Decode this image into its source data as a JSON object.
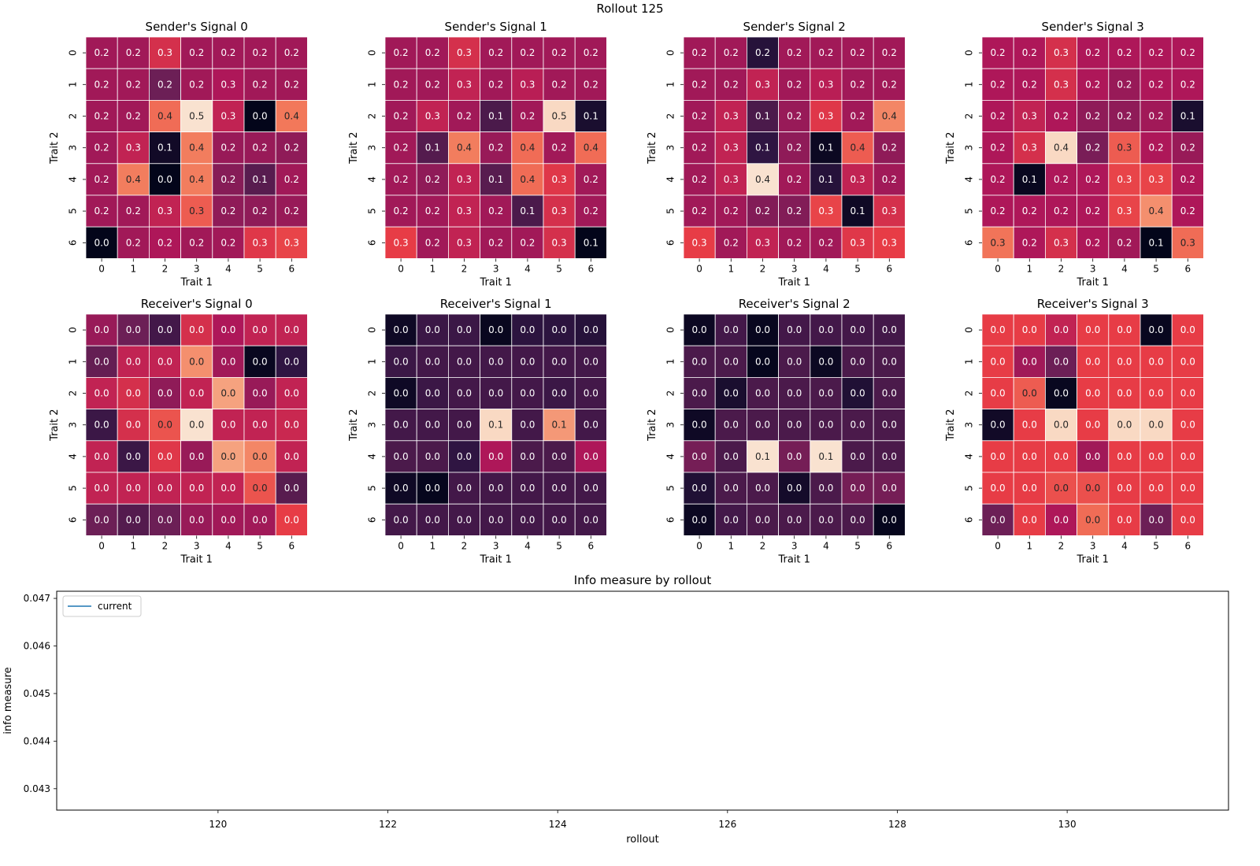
{
  "figure_title": "Rollout 125",
  "chart_data": [
    {
      "type": "heatmap",
      "title": "Sender's Signal 0",
      "xlabel": "Trait 1",
      "ylabel": "Trait 2",
      "x_ticks": [
        "0",
        "1",
        "2",
        "3",
        "4",
        "5",
        "6"
      ],
      "y_ticks": [
        "0",
        "1",
        "2",
        "3",
        "4",
        "5",
        "6"
      ],
      "labels": [
        [
          "0.2",
          "0.2",
          "0.3",
          "0.2",
          "0.2",
          "0.2",
          "0.2"
        ],
        [
          "0.2",
          "0.2",
          "0.2",
          "0.2",
          "0.3",
          "0.2",
          "0.2"
        ],
        [
          "0.2",
          "0.2",
          "0.4",
          "0.5",
          "0.3",
          "0.0",
          "0.4"
        ],
        [
          "0.2",
          "0.3",
          "0.1",
          "0.4",
          "0.2",
          "0.2",
          "0.2"
        ],
        [
          "0.2",
          "0.4",
          "0.0",
          "0.4",
          "0.2",
          "0.1",
          "0.2"
        ],
        [
          "0.2",
          "0.2",
          "0.3",
          "0.3",
          "0.2",
          "0.2",
          "0.2"
        ],
        [
          "0.0",
          "0.2",
          "0.2",
          "0.2",
          "0.2",
          "0.3",
          "0.3"
        ]
      ],
      "intensity": [
        [
          0.42,
          0.42,
          0.55,
          0.42,
          0.42,
          0.42,
          0.42
        ],
        [
          0.42,
          0.42,
          0.3,
          0.42,
          0.45,
          0.42,
          0.42
        ],
        [
          0.42,
          0.42,
          0.72,
          0.98,
          0.5,
          0,
          0.75
        ],
        [
          0.42,
          0.5,
          0.05,
          0.76,
          0.4,
          0.4,
          0.38
        ],
        [
          0.42,
          0.76,
          0,
          0.76,
          0.36,
          0.25,
          0.42
        ],
        [
          0.42,
          0.42,
          0.5,
          0.68,
          0.38,
          0.38,
          0.4
        ],
        [
          0,
          0.42,
          0.45,
          0.42,
          0.42,
          0.58,
          0.62
        ]
      ]
    },
    {
      "type": "heatmap",
      "title": "Sender's Signal 1",
      "xlabel": "Trait 1",
      "ylabel": "Trait 2",
      "x_ticks": [
        "0",
        "1",
        "2",
        "3",
        "4",
        "5",
        "6"
      ],
      "y_ticks": [
        "0",
        "1",
        "2",
        "3",
        "4",
        "5",
        "6"
      ],
      "labels": [
        [
          "0.2",
          "0.2",
          "0.3",
          "0.2",
          "0.2",
          "0.2",
          "0.2"
        ],
        [
          "0.2",
          "0.2",
          "0.3",
          "0.2",
          "0.3",
          "0.2",
          "0.2"
        ],
        [
          "0.2",
          "0.3",
          "0.2",
          "0.1",
          "0.2",
          "0.5",
          "0.1"
        ],
        [
          "0.2",
          "0.1",
          "0.4",
          "0.2",
          "0.4",
          "0.2",
          "0.4"
        ],
        [
          "0.2",
          "0.2",
          "0.3",
          "0.1",
          "0.4",
          "0.3",
          "0.2"
        ],
        [
          "0.2",
          "0.2",
          "0.3",
          "0.2",
          "0.1",
          "0.3",
          "0.2"
        ],
        [
          "0.3",
          "0.2",
          "0.3",
          "0.2",
          "0.2",
          "0.3",
          "0.1"
        ]
      ],
      "intensity": [
        [
          0.42,
          0.42,
          0.55,
          0.42,
          0.42,
          0.42,
          0.42
        ],
        [
          0.42,
          0.42,
          0.5,
          0.42,
          0.48,
          0.42,
          0.42
        ],
        [
          0.42,
          0.5,
          0.42,
          0.22,
          0.42,
          0.96,
          0.08
        ],
        [
          0.42,
          0.24,
          0.76,
          0.4,
          0.72,
          0.42,
          0.72
        ],
        [
          0.42,
          0.38,
          0.5,
          0.25,
          0.72,
          0.58,
          0.42
        ],
        [
          0.42,
          0.42,
          0.5,
          0.42,
          0.22,
          0.55,
          0.42
        ],
        [
          0.6,
          0.42,
          0.5,
          0.42,
          0.42,
          0.55,
          0
        ]
      ]
    },
    {
      "type": "heatmap",
      "title": "Sender's Signal 2",
      "xlabel": "Trait 1",
      "ylabel": "Trait 2",
      "x_ticks": [
        "0",
        "1",
        "2",
        "3",
        "4",
        "5",
        "6"
      ],
      "y_ticks": [
        "0",
        "1",
        "2",
        "3",
        "4",
        "5",
        "6"
      ],
      "labels": [
        [
          "0.2",
          "0.2",
          "0.2",
          "0.2",
          "0.2",
          "0.2",
          "0.2"
        ],
        [
          "0.2",
          "0.2",
          "0.3",
          "0.2",
          "0.3",
          "0.2",
          "0.2"
        ],
        [
          "0.2",
          "0.3",
          "0.1",
          "0.2",
          "0.3",
          "0.2",
          "0.4"
        ],
        [
          "0.2",
          "0.3",
          "0.1",
          "0.2",
          "0.1",
          "0.4",
          "0.2"
        ],
        [
          "0.2",
          "0.3",
          "0.4",
          "0.2",
          "0.1",
          "0.3",
          "0.2"
        ],
        [
          "0.2",
          "0.2",
          "0.2",
          "0.2",
          "0.3",
          "0.1",
          "0.3"
        ],
        [
          "0.3",
          "0.2",
          "0.3",
          "0.2",
          "0.2",
          "0.3",
          "0.3"
        ]
      ],
      "intensity": [
        [
          0.42,
          0.42,
          0.12,
          0.42,
          0.42,
          0.42,
          0.42
        ],
        [
          0.42,
          0.42,
          0.5,
          0.42,
          0.48,
          0.42,
          0.42
        ],
        [
          0.42,
          0.5,
          0.22,
          0.4,
          0.58,
          0.42,
          0.78
        ],
        [
          0.42,
          0.5,
          0.15,
          0.38,
          0.03,
          0.68,
          0.38
        ],
        [
          0.42,
          0.5,
          0.98,
          0.42,
          0.12,
          0.5,
          0.42
        ],
        [
          0.42,
          0.42,
          0.35,
          0.35,
          0.62,
          0.04,
          0.55
        ],
        [
          0.6,
          0.42,
          0.5,
          0.42,
          0.42,
          0.58,
          0.6
        ]
      ]
    },
    {
      "type": "heatmap",
      "title": "Sender's Signal 3",
      "xlabel": "Trait 1",
      "ylabel": "Trait 2",
      "x_ticks": [
        "0",
        "1",
        "2",
        "3",
        "4",
        "5",
        "6"
      ],
      "y_ticks": [
        "0",
        "1",
        "2",
        "3",
        "4",
        "5",
        "6"
      ],
      "labels": [
        [
          "0.2",
          "0.2",
          "0.3",
          "0.2",
          "0.2",
          "0.2",
          "0.2"
        ],
        [
          "0.2",
          "0.2",
          "0.3",
          "0.2",
          "0.2",
          "0.2",
          "0.2"
        ],
        [
          "0.2",
          "0.3",
          "0.2",
          "0.2",
          "0.2",
          "0.2",
          "0.1"
        ],
        [
          "0.2",
          "0.3",
          "0.4",
          "0.2",
          "0.3",
          "0.2",
          "0.2"
        ],
        [
          "0.2",
          "0.1",
          "0.2",
          "0.2",
          "0.3",
          "0.3",
          "0.2"
        ],
        [
          "0.2",
          "0.2",
          "0.2",
          "0.2",
          "0.3",
          "0.4",
          "0.2"
        ],
        [
          "0.3",
          "0.2",
          "0.3",
          "0.2",
          "0.2",
          "0.1",
          "0.3"
        ]
      ],
      "intensity": [
        [
          0.45,
          0.45,
          0.55,
          0.45,
          0.45,
          0.45,
          0.45
        ],
        [
          0.45,
          0.45,
          0.55,
          0.45,
          0.4,
          0.45,
          0.45
        ],
        [
          0.45,
          0.5,
          0.45,
          0.38,
          0.38,
          0.42,
          0.08
        ],
        [
          0.45,
          0.55,
          0.96,
          0.33,
          0.68,
          0.45,
          0.4
        ],
        [
          0.45,
          0.02,
          0.45,
          0.45,
          0.62,
          0.62,
          0.45
        ],
        [
          0.45,
          0.45,
          0.45,
          0.45,
          0.62,
          0.8,
          0.45
        ],
        [
          0.74,
          0.45,
          0.55,
          0.45,
          0.42,
          0,
          0.72
        ]
      ]
    },
    {
      "type": "heatmap",
      "title": "Receiver's Signal 0",
      "xlabel": "Trait 1",
      "ylabel": "Trait 2",
      "x_ticks": [
        "0",
        "1",
        "2",
        "3",
        "4",
        "5",
        "6"
      ],
      "y_ticks": [
        "0",
        "1",
        "2",
        "3",
        "4",
        "5",
        "6"
      ],
      "labels": [
        [
          "0.0",
          "0.0",
          "0.0",
          "0.0",
          "0.0",
          "0.0",
          "0.0"
        ],
        [
          "0.0",
          "0.0",
          "0.0",
          "0.0",
          "0.0",
          "0.0",
          "0.0"
        ],
        [
          "0.0",
          "0.0",
          "0.0",
          "0.0",
          "0.0",
          "0.0",
          "0.0"
        ],
        [
          "0.0",
          "0.0",
          "0.0",
          "0.0",
          "0.0",
          "0.0",
          "0.0"
        ],
        [
          "0.0",
          "0.0",
          "0.0",
          "0.0",
          "0.0",
          "0.0",
          "0.0"
        ],
        [
          "0.0",
          "0.0",
          "0.0",
          "0.0",
          "0.0",
          "0.0",
          "0.0"
        ],
        [
          "0.0",
          "0.0",
          "0.0",
          "0.0",
          "0.0",
          "0.0",
          "0.0"
        ]
      ],
      "intensity": [
        [
          0.4,
          0.3,
          0.2,
          0.55,
          0.45,
          0.5,
          0.5
        ],
        [
          0.28,
          0.5,
          0.5,
          0.8,
          0.42,
          0.02,
          0.15
        ],
        [
          0.5,
          0.55,
          0.38,
          0.5,
          0.84,
          0.4,
          0.5
        ],
        [
          0.18,
          0.55,
          0.66,
          0.98,
          0.5,
          0.5,
          0.52
        ],
        [
          0.5,
          0.18,
          0.58,
          0.4,
          0.84,
          0.78,
          0.5
        ],
        [
          0.5,
          0.5,
          0.5,
          0.5,
          0.5,
          0.66,
          0.25
        ],
        [
          0.3,
          0.24,
          0.3,
          0.4,
          0.42,
          0.42,
          0.6
        ]
      ]
    },
    {
      "type": "heatmap",
      "title": "Receiver's Signal 1",
      "xlabel": "Trait 1",
      "ylabel": "Trait 2",
      "x_ticks": [
        "0",
        "1",
        "2",
        "3",
        "4",
        "5",
        "6"
      ],
      "y_ticks": [
        "0",
        "1",
        "2",
        "3",
        "4",
        "5",
        "6"
      ],
      "labels": [
        [
          "0.0",
          "0.0",
          "0.0",
          "0.0",
          "0.0",
          "0.0",
          "0.0"
        ],
        [
          "0.0",
          "0.0",
          "0.0",
          "0.0",
          "0.0",
          "0.0",
          "0.0"
        ],
        [
          "0.0",
          "0.0",
          "0.0",
          "0.0",
          "0.0",
          "0.0",
          "0.0"
        ],
        [
          "0.0",
          "0.0",
          "0.0",
          "0.1",
          "0.0",
          "0.1",
          "0.0"
        ],
        [
          "0.0",
          "0.0",
          "0.0",
          "0.0",
          "0.0",
          "0.0",
          "0.0"
        ],
        [
          "0.0",
          "0.0",
          "0.0",
          "0.0",
          "0.0",
          "0.0",
          "0.0"
        ],
        [
          "0.0",
          "0.0",
          "0.0",
          "0.0",
          "0.0",
          "0.0",
          "0.0"
        ]
      ],
      "intensity": [
        [
          0.04,
          0.18,
          0.18,
          0.02,
          0.14,
          0.14,
          0.12
        ],
        [
          0.18,
          0.2,
          0.2,
          0.2,
          0.2,
          0.2,
          0.2
        ],
        [
          0.04,
          0.18,
          0.2,
          0.2,
          0.2,
          0.18,
          0.2
        ],
        [
          0.2,
          0.2,
          0.2,
          0.96,
          0.2,
          0.82,
          0.2
        ],
        [
          0.22,
          0.22,
          0.15,
          0.45,
          0.22,
          0.22,
          0.45
        ],
        [
          0.04,
          0.01,
          0.2,
          0.2,
          0.2,
          0.2,
          0.2
        ],
        [
          0.2,
          0.2,
          0.2,
          0.2,
          0.2,
          0.2,
          0.2
        ]
      ]
    },
    {
      "type": "heatmap",
      "title": "Receiver's Signal 2",
      "xlabel": "Trait 1",
      "ylabel": "Trait 2",
      "x_ticks": [
        "0",
        "1",
        "2",
        "3",
        "4",
        "5",
        "6"
      ],
      "y_ticks": [
        "0",
        "1",
        "2",
        "3",
        "4",
        "5",
        "6"
      ],
      "labels": [
        [
          "0.0",
          "0.0",
          "0.0",
          "0.0",
          "0.0",
          "0.0",
          "0.0"
        ],
        [
          "0.0",
          "0.0",
          "0.0",
          "0.0",
          "0.0",
          "0.0",
          "0.0"
        ],
        [
          "0.0",
          "0.0",
          "0.0",
          "0.0",
          "0.0",
          "0.0",
          "0.0"
        ],
        [
          "0.0",
          "0.0",
          "0.0",
          "0.0",
          "0.0",
          "0.0",
          "0.0"
        ],
        [
          "0.0",
          "0.0",
          "0.1",
          "0.0",
          "0.1",
          "0.0",
          "0.0"
        ],
        [
          "0.0",
          "0.0",
          "0.0",
          "0.0",
          "0.0",
          "0.0",
          "0.0"
        ],
        [
          "0.0",
          "0.0",
          "0.0",
          "0.0",
          "0.0",
          "0.0",
          "0.0"
        ]
      ],
      "intensity": [
        [
          0.03,
          0.2,
          0.02,
          0.2,
          0.2,
          0.2,
          0.2
        ],
        [
          0.22,
          0.22,
          0.01,
          0.22,
          0.03,
          0.22,
          0.22
        ],
        [
          0.22,
          0.08,
          0.22,
          0.22,
          0.22,
          0.1,
          0.22
        ],
        [
          0.04,
          0.22,
          0.22,
          0.22,
          0.22,
          0.22,
          0.22
        ],
        [
          0.32,
          0.22,
          0.98,
          0.32,
          0.98,
          0.22,
          0.22
        ],
        [
          0.1,
          0.22,
          0.22,
          0.06,
          0.22,
          0.32,
          0.32
        ],
        [
          0.03,
          0.2,
          0.22,
          0.22,
          0.22,
          0.22,
          0.01
        ]
      ]
    },
    {
      "type": "heatmap",
      "title": "Receiver's Signal 3",
      "xlabel": "Trait 1",
      "ylabel": "Trait 2",
      "x_ticks": [
        "0",
        "1",
        "2",
        "3",
        "4",
        "5",
        "6"
      ],
      "y_ticks": [
        "0",
        "1",
        "2",
        "3",
        "4",
        "5",
        "6"
      ],
      "labels": [
        [
          "0.0",
          "0.0",
          "0.0",
          "0.0",
          "0.0",
          "0.0",
          "0.0"
        ],
        [
          "0.0",
          "0.0",
          "0.0",
          "0.0",
          "0.0",
          "0.0",
          "0.0"
        ],
        [
          "0.0",
          "0.0",
          "0.0",
          "0.0",
          "0.0",
          "0.0",
          "0.0"
        ],
        [
          "0.0",
          "0.0",
          "0.0",
          "0.0",
          "0.0",
          "0.0",
          "0.0"
        ],
        [
          "0.0",
          "0.0",
          "0.0",
          "0.0",
          "0.0",
          "0.0",
          "0.0"
        ],
        [
          "0.0",
          "0.0",
          "0.0",
          "0.0",
          "0.0",
          "0.0",
          "0.0"
        ],
        [
          "0.0",
          "0.0",
          "0.0",
          "0.0",
          "0.0",
          "0.0",
          "0.0"
        ]
      ],
      "intensity": [
        [
          0.6,
          0.6,
          0.5,
          0.6,
          0.6,
          0.02,
          0.6
        ],
        [
          0.6,
          0.42,
          0.3,
          0.6,
          0.6,
          0.6,
          0.6
        ],
        [
          0.6,
          0.68,
          0.02,
          0.6,
          0.6,
          0.6,
          0.6
        ],
        [
          0.05,
          0.6,
          0.96,
          0.6,
          0.96,
          0.96,
          0.6
        ],
        [
          0.6,
          0.6,
          0.6,
          0.42,
          0.6,
          0.6,
          0.6
        ],
        [
          0.6,
          0.6,
          0.65,
          0.65,
          0.6,
          0.6,
          0.6
        ],
        [
          0.3,
          0.6,
          0.45,
          0.72,
          0.6,
          0.3,
          0.6
        ]
      ]
    },
    {
      "type": "line",
      "title": "Info measure by rollout",
      "xlabel": "rollout",
      "ylabel": "info measure",
      "xlim": [
        118.1,
        131.9
      ],
      "ylim": [
        0.04255,
        0.04715
      ],
      "x_ticks": [
        120,
        122,
        124,
        126,
        128,
        130
      ],
      "y_ticks": [
        0.043,
        0.044,
        0.045,
        0.046,
        0.047
      ],
      "legend_placement": "upper-left",
      "series": [
        {
          "name": "current",
          "color": "#1f77b4",
          "x": [],
          "y": []
        }
      ]
    }
  ]
}
